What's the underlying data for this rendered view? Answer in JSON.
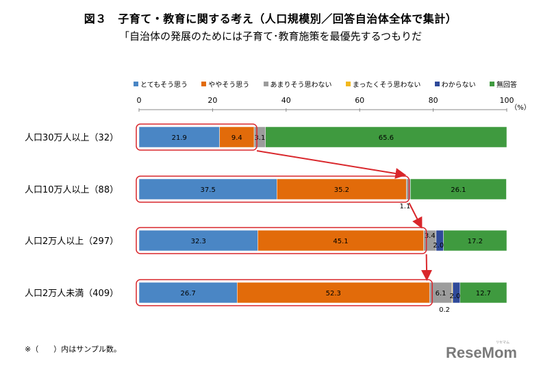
{
  "chart_data": {
    "type": "bar",
    "orientation": "horizontal",
    "stacked": true,
    "title": "図３　子育て・教育に関する考え（人口規模別／回答自治体全体で集計）",
    "subtitle": "「自治体の発展のためには子育て･教育施策を最優先するつもりだ",
    "xlim": [
      0,
      100
    ],
    "xticks": [
      "0",
      "20",
      "40",
      "60",
      "80",
      "100"
    ],
    "xunit": "（%）",
    "legend_position": "top",
    "categories": [
      "人口30万人以上（32）",
      "人口10万人以上（88）",
      "人口2万人以上（297）",
      "人口2万人未満（409）"
    ],
    "series": [
      {
        "name": "とてもそう思う",
        "color": "#4a86c5",
        "values": [
          21.9,
          37.5,
          32.3,
          26.7
        ]
      },
      {
        "name": "ややそう思う",
        "color": "#e26b0a",
        "values": [
          9.4,
          35.2,
          45.1,
          52.3
        ]
      },
      {
        "name": "あまりそう思わない",
        "color": "#9c9c9c",
        "values": [
          3.1,
          1.1,
          3.4,
          6.1
        ]
      },
      {
        "name": "まったくそう思わない",
        "color": "#f2b81e",
        "values": [
          0,
          0,
          0,
          0.2
        ]
      },
      {
        "name": "わからない",
        "color": "#2f4a99",
        "values": [
          0,
          0,
          2.0,
          2.0
        ]
      },
      {
        "name": "無回答",
        "color": "#3f9a3f",
        "values": [
          65.6,
          26.1,
          17.2,
          12.7
        ]
      }
    ],
    "data_labels": [
      [
        "21.9",
        "9.4",
        "3.1",
        "",
        "",
        "65.6"
      ],
      [
        "37.5",
        "35.2",
        "1.1",
        "",
        "",
        "26.1"
      ],
      [
        "32.3",
        "45.1",
        "3.4",
        "",
        "2.0",
        "17.2"
      ],
      [
        "26.7",
        "52.3",
        "6.1",
        "0.2",
        "2.0",
        "12.7"
      ]
    ],
    "highlight_color": "#d9262b"
  },
  "note": "※（　　）内はサンプル数。",
  "logo": "ReseMom",
  "logo_small": "リセマム"
}
